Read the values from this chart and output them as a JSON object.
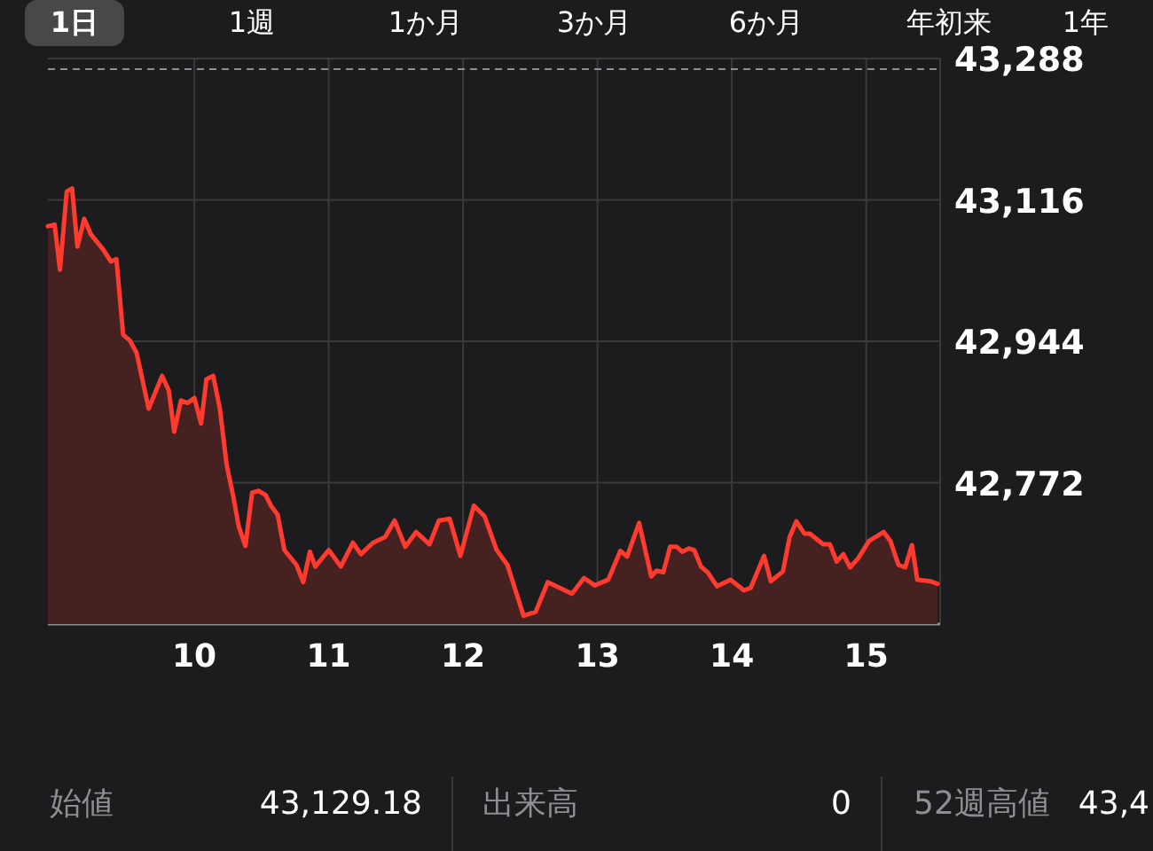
{
  "chart_data": {
    "type": "area",
    "ylim": [
      42600,
      43288
    ],
    "yticks": [
      {
        "value": 42772,
        "label": "42,772"
      },
      {
        "value": 42944,
        "label": "42,944"
      },
      {
        "value": 43116,
        "label": "43,116"
      },
      {
        "value": 43288,
        "label": "43,288"
      }
    ],
    "xlim": [
      8.91,
      15.55
    ],
    "xticks": [
      10,
      11,
      12,
      13,
      14,
      15
    ],
    "grid": true,
    "marker": "none",
    "line_style": "solid",
    "ref_lines": [
      {
        "axis": "y",
        "value": 43275,
        "line_style": "dashed",
        "color": "#8e8e93"
      }
    ],
    "series": [
      {
        "color": "#ff3b30",
        "x": [
          8.91,
          8.96,
          9.0,
          9.05,
          9.09,
          9.13,
          9.18,
          9.23,
          9.32,
          9.38,
          9.42,
          9.47,
          9.52,
          9.57,
          9.66,
          9.76,
          9.81,
          9.85,
          9.9,
          9.95,
          10.0,
          10.05,
          10.09,
          10.14,
          10.19,
          10.24,
          10.29,
          10.33,
          10.38,
          10.43,
          10.48,
          10.53,
          10.57,
          10.62,
          10.67,
          10.76,
          10.81,
          10.86,
          10.9,
          11.0,
          11.09,
          11.18,
          11.24,
          11.33,
          11.42,
          11.49,
          11.57,
          11.65,
          11.75,
          11.82,
          11.9,
          11.98,
          12.08,
          12.16,
          12.25,
          12.33,
          12.45,
          12.54,
          12.63,
          12.81,
          12.9,
          12.98,
          13.08,
          13.17,
          13.22,
          13.31,
          13.4,
          13.44,
          13.49,
          13.54,
          13.59,
          13.63,
          13.68,
          13.72,
          13.77,
          13.82,
          13.89,
          13.99,
          14.09,
          14.14,
          14.24,
          14.29,
          14.38,
          14.43,
          14.48,
          14.54,
          14.58,
          14.68,
          14.73,
          14.78,
          14.83,
          14.88,
          14.94,
          15.02,
          15.13,
          15.18,
          15.24,
          15.29,
          15.34,
          15.38,
          15.48,
          15.53
        ],
        "values": [
          43084,
          43086,
          43031,
          43126,
          43130,
          43059,
          43093,
          43074,
          43056,
          43041,
          43044,
          42952,
          42945,
          42930,
          42862,
          42902,
          42884,
          42834,
          42872,
          42869,
          42875,
          42844,
          42898,
          42902,
          42862,
          42794,
          42755,
          42719,
          42695,
          42760,
          42762,
          42757,
          42744,
          42733,
          42690,
          42672,
          42651,
          42688,
          42670,
          42690,
          42670,
          42699,
          42685,
          42699,
          42706,
          42726,
          42694,
          42712,
          42697,
          42726,
          42728,
          42683,
          42744,
          42731,
          42690,
          42672,
          42610,
          42615,
          42651,
          42637,
          42656,
          42647,
          42654,
          42689,
          42682,
          42723,
          42658,
          42665,
          42663,
          42694,
          42694,
          42688,
          42692,
          42690,
          42670,
          42663,
          42646,
          42654,
          42641,
          42644,
          42683,
          42652,
          42664,
          42706,
          42725,
          42710,
          42710,
          42697,
          42697,
          42676,
          42685,
          42669,
          42680,
          42701,
          42712,
          42701,
          42672,
          42669,
          42696,
          42654,
          42652,
          42649
        ]
      }
    ],
    "annotations": [
      "1日",
      "1週",
      "1か月",
      "3か月",
      "6か月",
      "年初来",
      "1年",
      "始値",
      "43,129.18",
      "出来高",
      "0",
      "52週高値",
      "43,4"
    ]
  }
}
